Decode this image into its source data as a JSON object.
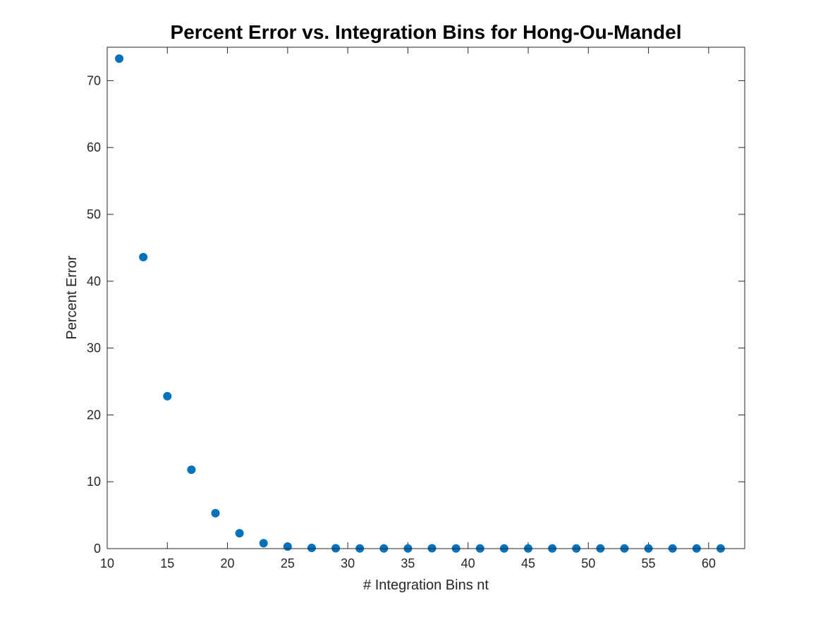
{
  "chart_data": {
    "type": "scatter",
    "title": "Percent Error vs. Integration Bins for Hong-Ou-Mandel",
    "xlabel": "# Integration Bins nt",
    "ylabel": "Percent Error",
    "xlim": [
      10,
      63
    ],
    "ylim": [
      0,
      75
    ],
    "xticks": [
      10,
      15,
      20,
      25,
      30,
      35,
      40,
      45,
      50,
      55,
      60
    ],
    "yticks": [
      0,
      10,
      20,
      30,
      40,
      50,
      60,
      70
    ],
    "grid": false,
    "marker_color": "#0072BD",
    "series": [
      {
        "x": [
          11,
          13,
          15,
          17,
          19,
          21,
          23,
          25,
          27,
          29,
          31,
          33,
          35,
          37,
          39,
          41,
          43,
          45,
          47,
          49,
          51,
          53,
          55,
          57,
          59,
          61
        ],
        "y": [
          73.3,
          43.6,
          22.8,
          11.8,
          5.3,
          2.3,
          0.8,
          0.3,
          0.1,
          0.05,
          0.03,
          0.02,
          0.02,
          0.05,
          0.03,
          0.02,
          0.02,
          0.02,
          0.02,
          0.02,
          0.02,
          0.02,
          0.02,
          0.02,
          0.02,
          0.02
        ]
      }
    ]
  }
}
